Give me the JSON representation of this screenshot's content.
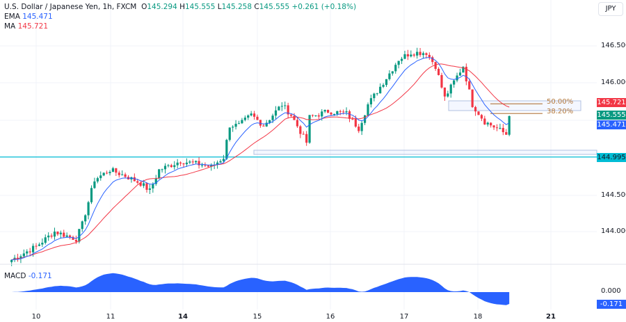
{
  "header": {
    "symbol": "U.S. Dollar / Japanese Yen, 1h, FXCM",
    "o_label": "O",
    "o": "145.294",
    "h_label": "H",
    "h": "145.555",
    "l_label": "L",
    "l": "145.258",
    "c_label": "C",
    "c": "145.555",
    "change": "+0.261 (+0.18%)",
    "ema_label": "EMA",
    "ema": "145.471",
    "ma_label": "MA",
    "ma": "145.721",
    "currency_button": "JPY"
  },
  "colors": {
    "up": "#089981",
    "down": "#f23645",
    "ema": "#2962ff",
    "ma": "#f23645",
    "macd": "#2962ff",
    "support": "#00bcd4",
    "fib": "#b2773b"
  },
  "chart_data": {
    "type": "candlestick",
    "timeframe": "1h",
    "x_tick_labels": [
      "10",
      "11",
      "14",
      "15",
      "16",
      "17",
      "18",
      "21"
    ],
    "y_tick_labels": [
      "146.500",
      "146.000",
      "144.500",
      "144.000"
    ],
    "ylim": [
      143.6,
      146.7
    ],
    "close_path": [
      [
        "09 16",
        143.62
      ],
      [
        "10 00",
        143.8
      ],
      [
        "10 06",
        144.0
      ],
      [
        "10 13",
        143.9
      ],
      [
        "10 15",
        144.1
      ],
      [
        "10 19",
        144.7
      ],
      [
        "11 00",
        144.83
      ],
      [
        "11 05",
        144.75
      ],
      [
        "11 10",
        144.65
      ],
      [
        "11 13",
        144.55
      ],
      [
        "11 16",
        144.83
      ],
      [
        "11 23",
        144.95
      ],
      [
        "14 06",
        144.9
      ],
      [
        "14 09",
        144.87
      ],
      [
        "14 13",
        145.0
      ],
      [
        "14 15",
        145.43
      ],
      [
        "14 18",
        145.43
      ],
      [
        "14 22",
        145.57
      ],
      [
        "15 02",
        145.43
      ],
      [
        "15 08",
        145.71
      ],
      [
        "15 11",
        145.57
      ],
      [
        "15 16",
        145.2
      ],
      [
        "15 17",
        145.54
      ],
      [
        "15 23",
        145.62
      ],
      [
        "16 05",
        145.59
      ],
      [
        "16 09",
        145.39
      ],
      [
        "16 12",
        145.71
      ],
      [
        "16 19",
        146.13
      ],
      [
        "16 22",
        146.32
      ],
      [
        "17 02",
        146.41
      ],
      [
        "17 07",
        146.41
      ],
      [
        "17 10",
        146.23
      ],
      [
        "17 13",
        145.8
      ],
      [
        "17 17",
        146.09
      ],
      [
        "17 19",
        146.23
      ],
      [
        "17 22",
        145.71
      ],
      [
        "18 02",
        145.48
      ],
      [
        "18 06",
        145.39
      ],
      [
        "18 09",
        145.31
      ],
      [
        "18 10",
        145.555
      ]
    ],
    "price_badges": {
      "ma": "145.721",
      "close": "145.555",
      "ema": "145.471",
      "support": "144.995"
    },
    "support_level": 144.995,
    "fib_levels": [
      {
        "label": "50.00%",
        "price": 145.72
      },
      {
        "label": "38.20%",
        "price": 145.59
      }
    ],
    "macd": {
      "label": "MACD",
      "value": "-0.171",
      "zero_label": "0.000"
    }
  }
}
